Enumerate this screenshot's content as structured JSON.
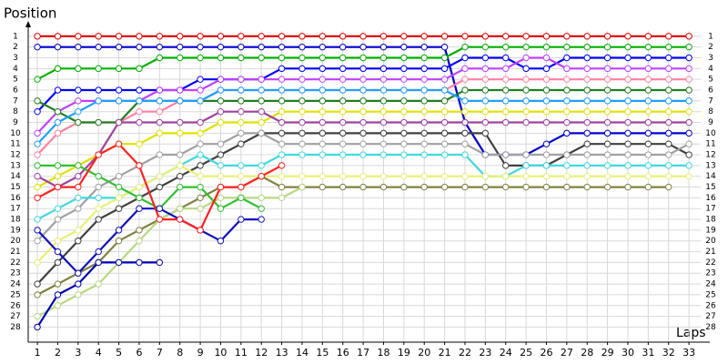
{
  "chart_data": {
    "type": "line",
    "y_label": "Position",
    "x_label": "Laps",
    "x": [
      1,
      2,
      3,
      4,
      5,
      6,
      7,
      8,
      9,
      10,
      11,
      12,
      13,
      14,
      15,
      16,
      17,
      18,
      19,
      20,
      21,
      22,
      23,
      24,
      25,
      26,
      27,
      28,
      29,
      30,
      31,
      32,
      33
    ],
    "xlim": [
      0.55,
      33.8
    ],
    "ylim": [
      0,
      29.4
    ],
    "xticks": [
      1,
      2,
      3,
      4,
      5,
      6,
      7,
      8,
      9,
      10,
      11,
      12,
      13,
      14,
      15,
      16,
      17,
      18,
      19,
      20,
      21,
      22,
      23,
      24,
      25,
      26,
      27,
      28,
      29,
      30,
      31,
      32,
      33
    ],
    "yticks": [
      1,
      2,
      3,
      4,
      5,
      6,
      7,
      8,
      9,
      10,
      11,
      12,
      13,
      14,
      15,
      16,
      17,
      18,
      19,
      20,
      21,
      22,
      23,
      24,
      25,
      26,
      27,
      28
    ],
    "grid": true,
    "series": [
      {
        "color": "#e00000",
        "values": [
          1,
          1,
          1,
          1,
          1,
          1,
          1,
          1,
          1,
          1,
          1,
          1,
          1,
          1,
          1,
          1,
          1,
          1,
          1,
          1,
          1,
          1,
          1,
          1,
          1,
          1,
          1,
          1,
          1,
          1,
          1,
          1,
          1
        ]
      },
      {
        "color": "#0000d0",
        "values": [
          2,
          2,
          2,
          2,
          2,
          2,
          2,
          2,
          2,
          2,
          2,
          2,
          2,
          2,
          2,
          2,
          2,
          2,
          2,
          2,
          2,
          9,
          12,
          12,
          12,
          11,
          10,
          10,
          10,
          10,
          10,
          10,
          10
        ]
      },
      {
        "color": "#00b000",
        "values": [
          5,
          4,
          4,
          4,
          4,
          4,
          3,
          3,
          3,
          3,
          3,
          3,
          3,
          3,
          3,
          3,
          3,
          3,
          3,
          3,
          3,
          2,
          2,
          2,
          2,
          2,
          2,
          2,
          2,
          2,
          2,
          2,
          2
        ]
      },
      {
        "color": "#0000ff",
        "values": [
          8,
          6,
          6,
          6,
          6,
          6,
          6,
          6,
          5,
          5,
          5,
          5,
          4,
          4,
          4,
          4,
          4,
          4,
          4,
          4,
          4,
          3,
          3,
          3,
          4,
          4,
          3,
          3,
          3,
          3,
          3,
          3,
          3
        ]
      },
      {
        "color": "#c040ff",
        "values": [
          10,
          8,
          7,
          7,
          7,
          7,
          6,
          6,
          6,
          5,
          5,
          5,
          5,
          5,
          5,
          5,
          5,
          5,
          5,
          5,
          5,
          4,
          4,
          4,
          3,
          3,
          4,
          4,
          4,
          4,
          4,
          4,
          4
        ]
      },
      {
        "color": "#ff80a0",
        "values": [
          12,
          10,
          9,
          9,
          9,
          8,
          8,
          7,
          7,
          6,
          6,
          6,
          6,
          6,
          6,
          6,
          6,
          6,
          6,
          6,
          6,
          5,
          5,
          5,
          5,
          5,
          5,
          5,
          5,
          5,
          5,
          5,
          5
        ]
      },
      {
        "color": "#208020",
        "values": [
          7,
          8,
          9,
          9,
          9,
          7,
          7,
          7,
          7,
          7,
          7,
          7,
          7,
          7,
          7,
          7,
          7,
          7,
          7,
          7,
          7,
          6,
          6,
          6,
          6,
          6,
          6,
          6,
          6,
          6,
          6,
          6,
          6
        ]
      },
      {
        "color": "#20a0ff",
        "values": [
          11,
          9,
          8,
          7,
          7,
          7,
          7,
          7,
          7,
          6,
          6,
          6,
          6,
          6,
          6,
          6,
          6,
          6,
          6,
          6,
          6,
          7,
          7,
          7,
          7,
          7,
          7,
          7,
          7,
          7,
          7,
          7,
          7
        ]
      },
      {
        "color": "#e0e000",
        "values": [
          15,
          14,
          13,
          12,
          11,
          11,
          10,
          10,
          10,
          9,
          9,
          9,
          8,
          8,
          8,
          8,
          8,
          8,
          8,
          8,
          8,
          8,
          8,
          8,
          8,
          8,
          8,
          8,
          8,
          8,
          8,
          8,
          8
        ]
      },
      {
        "color": "#a040a0",
        "values": [
          14,
          15,
          14,
          12,
          9,
          9,
          9,
          9,
          9,
          8,
          8,
          8,
          9,
          9,
          9,
          9,
          9,
          9,
          9,
          9,
          9,
          9,
          9,
          9,
          9,
          9,
          9,
          9,
          9,
          9,
          9,
          9,
          9
        ]
      },
      {
        "color": "#404040",
        "values": [
          24,
          22,
          20,
          18,
          17,
          16,
          15,
          14,
          13,
          12,
          11,
          10,
          10,
          10,
          10,
          10,
          10,
          10,
          10,
          10,
          10,
          10,
          10,
          13,
          13,
          13,
          12,
          11,
          11,
          11,
          11,
          11,
          12
        ]
      },
      {
        "color": "#a0a0a0",
        "values": [
          20,
          18,
          17,
          15,
          14,
          13,
          12,
          12,
          11,
          11,
          10,
          10,
          11,
          11,
          11,
          11,
          11,
          11,
          11,
          11,
          11,
          11,
          12,
          12,
          12,
          12,
          12,
          12,
          12,
          12,
          12,
          12,
          11
        ]
      },
      {
        "color": "#40d8e0",
        "values": [
          18,
          17,
          16,
          16,
          16,
          15,
          14,
          13,
          12,
          13,
          13,
          13,
          12,
          12,
          12,
          12,
          12,
          12,
          12,
          12,
          12,
          12,
          14,
          14,
          13,
          13,
          13,
          13,
          13,
          13,
          13,
          13,
          13
        ]
      },
      {
        "color": "#e8f070",
        "values": [
          22,
          20,
          19,
          17,
          16,
          15,
          14,
          13,
          14,
          14,
          14,
          14,
          14,
          14,
          14,
          14,
          14,
          14,
          14,
          14,
          14,
          14,
          14,
          14,
          14,
          14,
          14,
          14,
          14,
          14,
          14,
          14,
          14
        ]
      },
      {
        "color": "#808040",
        "values": [
          25,
          24,
          23,
          22,
          20,
          19,
          18,
          17,
          16,
          15,
          15,
          14,
          15,
          15,
          15,
          15,
          15,
          15,
          15,
          15,
          15,
          15,
          15,
          15,
          15,
          15,
          15,
          15,
          15,
          15,
          15,
          15,
          null
        ]
      },
      {
        "color": "#b8d880",
        "values": [
          27,
          26,
          25,
          24,
          22,
          20,
          18,
          17,
          17,
          16,
          16,
          16,
          16,
          15,
          null,
          null,
          null,
          null,
          null,
          null,
          null,
          null,
          null,
          null,
          null,
          null,
          null,
          null,
          null,
          null,
          null,
          null,
          null
        ]
      },
      {
        "color": "#30c030",
        "values": [
          13,
          13,
          13,
          14,
          15,
          16,
          17,
          15,
          15,
          17,
          16,
          17,
          null,
          null,
          null,
          null,
          null,
          null,
          null,
          null,
          null,
          null,
          null,
          null,
          null,
          null,
          null,
          null,
          null,
          null,
          null,
          null,
          null
        ]
      },
      {
        "color": "#1010c0",
        "values": [
          19,
          21,
          23,
          21,
          19,
          17,
          17,
          18,
          19,
          20,
          18,
          18,
          null,
          null,
          null,
          null,
          null,
          null,
          null,
          null,
          null,
          null,
          null,
          null,
          null,
          null,
          null,
          null,
          null,
          null,
          null,
          null,
          null
        ]
      },
      {
        "color": "#ff2020",
        "values": [
          16,
          15,
          15,
          12,
          11,
          13,
          18,
          18,
          19,
          15,
          15,
          14,
          13,
          null,
          null,
          null,
          null,
          null,
          null,
          null,
          null,
          null,
          null,
          null,
          null,
          null,
          null,
          null,
          null,
          null,
          null,
          null,
          null
        ]
      },
      {
        "color": "#0000b0",
        "values": [
          28,
          25,
          24,
          22,
          22,
          22,
          22,
          null,
          null,
          null,
          null,
          null,
          null,
          null,
          null,
          null,
          null,
          null,
          null,
          null,
          null,
          null,
          null,
          null,
          null,
          null,
          null,
          null,
          null,
          null,
          null,
          null,
          null
        ]
      }
    ]
  }
}
